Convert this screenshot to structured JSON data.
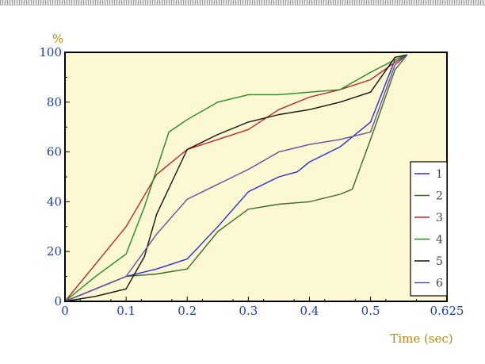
{
  "chart_data": {
    "type": "line",
    "title": "",
    "xlabel": "Time (sec)",
    "ylabel": "%",
    "xlim": [
      0,
      0.625
    ],
    "ylim": [
      0,
      100
    ],
    "x_ticks": [
      "0",
      "0.1",
      "0.2",
      "0.3",
      "0.4",
      "0.5",
      "0.625"
    ],
    "y_ticks": [
      "0",
      "20",
      "40",
      "60",
      "80",
      "100"
    ],
    "x_tick_values": [
      0,
      0.1,
      0.2,
      0.3,
      0.4,
      0.5,
      0.625
    ],
    "y_tick_values": [
      0,
      20,
      40,
      60,
      80,
      100
    ],
    "grid": false,
    "legend_position": "bottom-right",
    "background_color": "#fcf9d2",
    "axis_label_color": "#b8860b",
    "tick_label_color": "#1f3fa0",
    "series": [
      {
        "name": "1",
        "color": "#2b2bd6",
        "x": [
          0,
          0.05,
          0.1,
          0.15,
          0.2,
          0.25,
          0.3,
          0.35,
          0.38,
          0.4,
          0.45,
          0.5,
          0.54,
          0.56
        ],
        "y": [
          0,
          5,
          10,
          13,
          17,
          30,
          44,
          50,
          52,
          56,
          62,
          72,
          97,
          99
        ]
      },
      {
        "name": "2",
        "color": "#3a6a2e",
        "x": [
          0,
          0.05,
          0.1,
          0.15,
          0.2,
          0.25,
          0.3,
          0.35,
          0.4,
          0.45,
          0.47,
          0.5,
          0.54,
          0.56
        ],
        "y": [
          0,
          5,
          10,
          11,
          13,
          28,
          37,
          39,
          40,
          43,
          45,
          65,
          93,
          99
        ]
      },
      {
        "name": "3",
        "color": "#c0242a",
        "x": [
          0,
          0.05,
          0.1,
          0.15,
          0.2,
          0.25,
          0.3,
          0.35,
          0.4,
          0.45,
          0.5,
          0.54,
          0.56
        ],
        "y": [
          0,
          15,
          30,
          51,
          61,
          65,
          69,
          77,
          82,
          85,
          89,
          96,
          99
        ]
      },
      {
        "name": "4",
        "color": "#238a23",
        "x": [
          0,
          0.05,
          0.1,
          0.13,
          0.17,
          0.2,
          0.25,
          0.3,
          0.35,
          0.4,
          0.45,
          0.5,
          0.54,
          0.56
        ],
        "y": [
          0,
          10,
          19,
          38,
          68,
          73,
          80,
          83,
          83,
          84,
          85,
          92,
          97,
          99
        ]
      },
      {
        "name": "5",
        "color": "#111111",
        "x": [
          0,
          0.05,
          0.1,
          0.13,
          0.15,
          0.2,
          0.25,
          0.3,
          0.35,
          0.4,
          0.45,
          0.5,
          0.54,
          0.56
        ],
        "y": [
          0,
          2,
          5,
          18,
          35,
          61,
          67,
          72,
          75,
          77,
          80,
          84,
          98,
          99
        ]
      },
      {
        "name": "6",
        "color": "#6a4aa0",
        "x": [
          0,
          0.05,
          0.1,
          0.15,
          0.2,
          0.25,
          0.3,
          0.35,
          0.4,
          0.45,
          0.5,
          0.54,
          0.56
        ],
        "y": [
          0,
          5,
          10,
          27,
          41,
          47,
          53,
          60,
          63,
          65,
          68,
          95,
          99
        ]
      }
    ]
  }
}
